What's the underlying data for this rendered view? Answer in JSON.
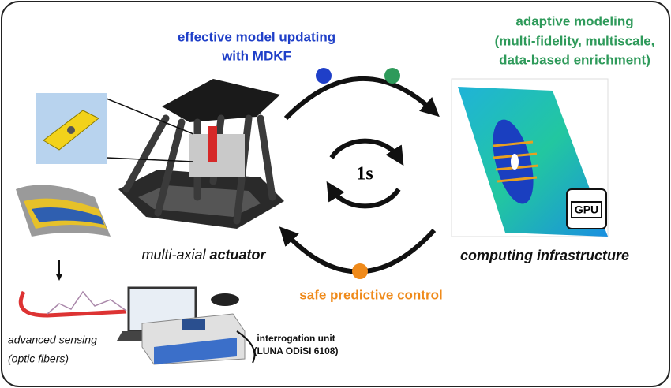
{
  "labels": {
    "updating": {
      "lines": [
        "effective model updating",
        "with MDKF"
      ]
    },
    "modeling": {
      "lines": [
        "adaptive modeling",
        "(multi-fidelity, multiscale,",
        "data-based enrichment)"
      ]
    },
    "cycle": "1s",
    "actuator": {
      "plain": "multi-axial ",
      "bold": "actuator"
    },
    "computing": "computing infrastructure",
    "control": "safe predictive control",
    "sensing": {
      "lines": [
        "advanced sensing",
        "(optic fibers)"
      ]
    },
    "interrogation": {
      "lines": [
        "interrogation unit",
        "(LUNA ODiSI 6108)"
      ]
    },
    "gpu": "GPU"
  }
}
